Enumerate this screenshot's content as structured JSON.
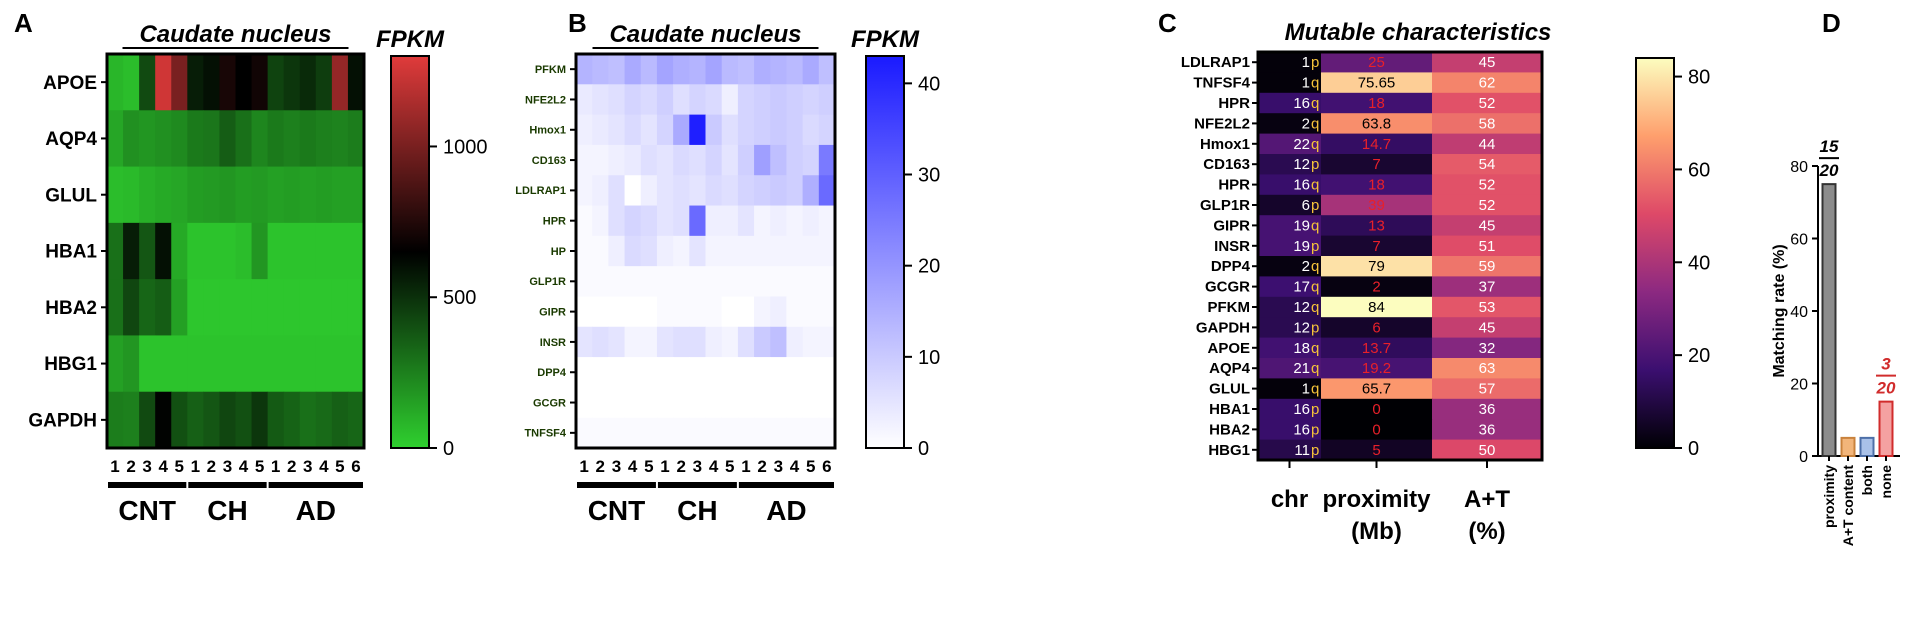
{
  "panels": {
    "a": "A",
    "b": "B",
    "c": "C",
    "d": "D"
  },
  "chart_data": [
    {
      "panel": "A",
      "type": "heatmap",
      "title": "Caudate nucleus",
      "colorbar_label": "FPKM",
      "colorbar_ticks": [
        "0",
        "500",
        "1000"
      ],
      "colorbar_range": [
        0,
        1300
      ],
      "colormap": [
        "#2fd02f",
        "#000000",
        "#e03b3b"
      ],
      "rows": [
        "APOE",
        "AQP4",
        "GLUL",
        "HBA1",
        "HBA2",
        "HBG1",
        "GAPDH"
      ],
      "columns": [
        "1",
        "2",
        "3",
        "4",
        "5",
        "1",
        "2",
        "3",
        "4",
        "5",
        "1",
        "2",
        "3",
        "4",
        "5",
        "6"
      ],
      "groups": [
        {
          "label": "CNT",
          "start": 0,
          "end": 4
        },
        {
          "label": "CH",
          "start": 5,
          "end": 9
        },
        {
          "label": "AD",
          "start": 10,
          "end": 15
        }
      ],
      "values": [
        [
          80,
          60,
          420,
          1250,
          1000,
          560,
          600,
          720,
          650,
          700,
          440,
          480,
          520,
          460,
          1080,
          600
        ],
        [
          130,
          200,
          180,
          200,
          220,
          270,
          280,
          360,
          300,
          230,
          270,
          250,
          270,
          250,
          240,
          260
        ],
        [
          60,
          70,
          100,
          120,
          130,
          160,
          170,
          180,
          160,
          170,
          150,
          160,
          150,
          160,
          150,
          150
        ],
        [
          300,
          560,
          380,
          600,
          120,
          40,
          40,
          40,
          60,
          180,
          40,
          40,
          40,
          40,
          40,
          40
        ],
        [
          300,
          430,
          330,
          360,
          150,
          30,
          30,
          30,
          30,
          30,
          30,
          30,
          30,
          30,
          30,
          30
        ],
        [
          150,
          180,
          40,
          40,
          40,
          40,
          40,
          40,
          40,
          40,
          40,
          40,
          40,
          40,
          40,
          40
        ],
        [
          260,
          250,
          420,
          640,
          400,
          350,
          380,
          430,
          400,
          480,
          370,
          340,
          300,
          320,
          350,
          330
        ]
      ]
    },
    {
      "panel": "B",
      "type": "heatmap",
      "title": "Caudate nucleus",
      "colorbar_label": "FPKM",
      "colorbar_ticks": [
        "0",
        "10",
        "20",
        "30",
        "40"
      ],
      "colorbar_range": [
        0,
        43
      ],
      "colormap": [
        "#ffffff",
        "#1a1aff"
      ],
      "rows": [
        "PFKM",
        "NFE2L2",
        "Hmox1",
        "CD163",
        "LDLRAP1",
        "HPR",
        "HP",
        "GLP1R",
        "GIPR",
        "INSR",
        "DPP4",
        "GCGR",
        "TNFSF4"
      ],
      "columns": [
        "1",
        "2",
        "3",
        "4",
        "5",
        "1",
        "2",
        "3",
        "4",
        "5",
        "1",
        "2",
        "3",
        "4",
        "5",
        "6"
      ],
      "groups": [
        {
          "label": "CNT",
          "start": 0,
          "end": 4
        },
        {
          "label": "CH",
          "start": 5,
          "end": 9
        },
        {
          "label": "AD",
          "start": 10,
          "end": 15
        }
      ],
      "values": [
        [
          14,
          13,
          12,
          16,
          13,
          17,
          15,
          14,
          17,
          13,
          12,
          15,
          14,
          13,
          16,
          12
        ],
        [
          4,
          5,
          6,
          8,
          7,
          9,
          6,
          8,
          7,
          3,
          8,
          9,
          10,
          9,
          8,
          9
        ],
        [
          3,
          4,
          5,
          7,
          5,
          8,
          16,
          42,
          10,
          6,
          8,
          9,
          10,
          9,
          7,
          8
        ],
        [
          2,
          2,
          3,
          4,
          6,
          5,
          7,
          6,
          8,
          5,
          9,
          18,
          12,
          9,
          8,
          25
        ],
        [
          2,
          3,
          6,
          0,
          3,
          5,
          6,
          5,
          7,
          6,
          8,
          9,
          10,
          9,
          15,
          28
        ],
        [
          1,
          2,
          6,
          8,
          7,
          5,
          6,
          28,
          3,
          3,
          5,
          2,
          3,
          2,
          3,
          2
        ],
        [
          1,
          1,
          3,
          7,
          6,
          3,
          2,
          5,
          2,
          2,
          2,
          2,
          2,
          2,
          2,
          2
        ],
        [
          1,
          1,
          1,
          1,
          1,
          1,
          1,
          1,
          1,
          1,
          1,
          1,
          1,
          1,
          1,
          1
        ],
        [
          0,
          0,
          0,
          0,
          0,
          1,
          1,
          1,
          1,
          0,
          0,
          2,
          3,
          1,
          1,
          1
        ],
        [
          5,
          6,
          5,
          2,
          2,
          5,
          6,
          6,
          3,
          2,
          6,
          10,
          12,
          3,
          2,
          2
        ],
        [
          0,
          0,
          0,
          0,
          0,
          0,
          0,
          0,
          0,
          0,
          0,
          0,
          0,
          0,
          0,
          0
        ],
        [
          0,
          0,
          0,
          0,
          0,
          0,
          0,
          0,
          0,
          0,
          0,
          0,
          0,
          0,
          0,
          0
        ],
        [
          1,
          1,
          1,
          1,
          1,
          1,
          1,
          1,
          1,
          1,
          1,
          1,
          1,
          1,
          1,
          1
        ]
      ]
    },
    {
      "panel": "C",
      "type": "heatmap",
      "title": "Mutable characteristics",
      "colorbar_ticks": [
        "0",
        "20",
        "40",
        "60",
        "80"
      ],
      "colorbar_range": [
        0,
        84
      ],
      "colormap": [
        "#000004",
        "#3b0f70",
        "#8c2981",
        "#de4968",
        "#fe9f6d",
        "#fcfdbf"
      ],
      "columns": [
        "chr",
        "proximity (Mb)",
        "A+T (%)"
      ],
      "rows": [
        "LDLRAP1",
        "TNFSF4",
        "HPR",
        "NFE2L2",
        "Hmox1",
        "CD163",
        "HPR",
        "GLP1R",
        "GIPR",
        "INSR",
        "DPP4",
        "GCGR",
        "PFKM",
        "GAPDH",
        "APOE",
        "AQP4",
        "GLUL",
        "HBA1",
        "HBA2",
        "HBG1"
      ],
      "chr": [
        {
          "num": "1",
          "arm": "p"
        },
        {
          "num": "1",
          "arm": "q"
        },
        {
          "num": "16",
          "arm": "q"
        },
        {
          "num": "2",
          "arm": "q"
        },
        {
          "num": "22",
          "arm": "q"
        },
        {
          "num": "12",
          "arm": "p"
        },
        {
          "num": "16",
          "arm": "q"
        },
        {
          "num": "6",
          "arm": "p"
        },
        {
          "num": "19",
          "arm": "q"
        },
        {
          "num": "19",
          "arm": "p"
        },
        {
          "num": "2",
          "arm": "q"
        },
        {
          "num": "17",
          "arm": "q"
        },
        {
          "num": "12",
          "arm": "q"
        },
        {
          "num": "12",
          "arm": "p"
        },
        {
          "num": "18",
          "arm": "q"
        },
        {
          "num": "21",
          "arm": "q"
        },
        {
          "num": "1",
          "arm": "q"
        },
        {
          "num": "16",
          "arm": "p"
        },
        {
          "num": "16",
          "arm": "p"
        },
        {
          "num": "11",
          "arm": "p"
        }
      ],
      "chr_values": [
        1,
        1,
        16,
        2,
        22,
        12,
        16,
        6,
        19,
        19,
        2,
        17,
        12,
        12,
        18,
        21,
        1,
        16,
        16,
        11
      ],
      "proximity": [
        "25",
        "75.65",
        "18",
        "63.8",
        "14.7",
        "7",
        "18",
        "39",
        "13",
        "7",
        "79",
        "2",
        "84",
        "6",
        "13.7",
        "19.2",
        "65.7",
        "0",
        "0",
        "5"
      ],
      "at": [
        "45",
        "62",
        "52",
        "58",
        "44",
        "54",
        "52",
        "52",
        "45",
        "51",
        "59",
        "37",
        "53",
        "45",
        "32",
        "63",
        "57",
        "36",
        "36",
        "50"
      ]
    },
    {
      "panel": "D",
      "type": "bar",
      "ylabel": "Matching rate  (%)",
      "ylim": [
        0,
        80
      ],
      "yticks": [
        "0",
        "20",
        "40",
        "60",
        "80"
      ],
      "categories": [
        "proximity",
        "A+T content",
        "both",
        "none"
      ],
      "values": [
        75,
        5,
        5,
        15
      ],
      "colors": [
        "#8c8c8c",
        "#f2b57a",
        "#a9c1e8",
        "#f4a1a1"
      ],
      "edge_colors": [
        "#333333",
        "#c9823c",
        "#4d6fa8",
        "#d12c2c"
      ],
      "annotations": [
        {
          "category": "proximity",
          "numerator": "15",
          "denominator": "20",
          "color": "#000000"
        },
        {
          "category": "none",
          "numerator": "3",
          "denominator": "20",
          "color": "#d12c2c"
        }
      ]
    }
  ]
}
